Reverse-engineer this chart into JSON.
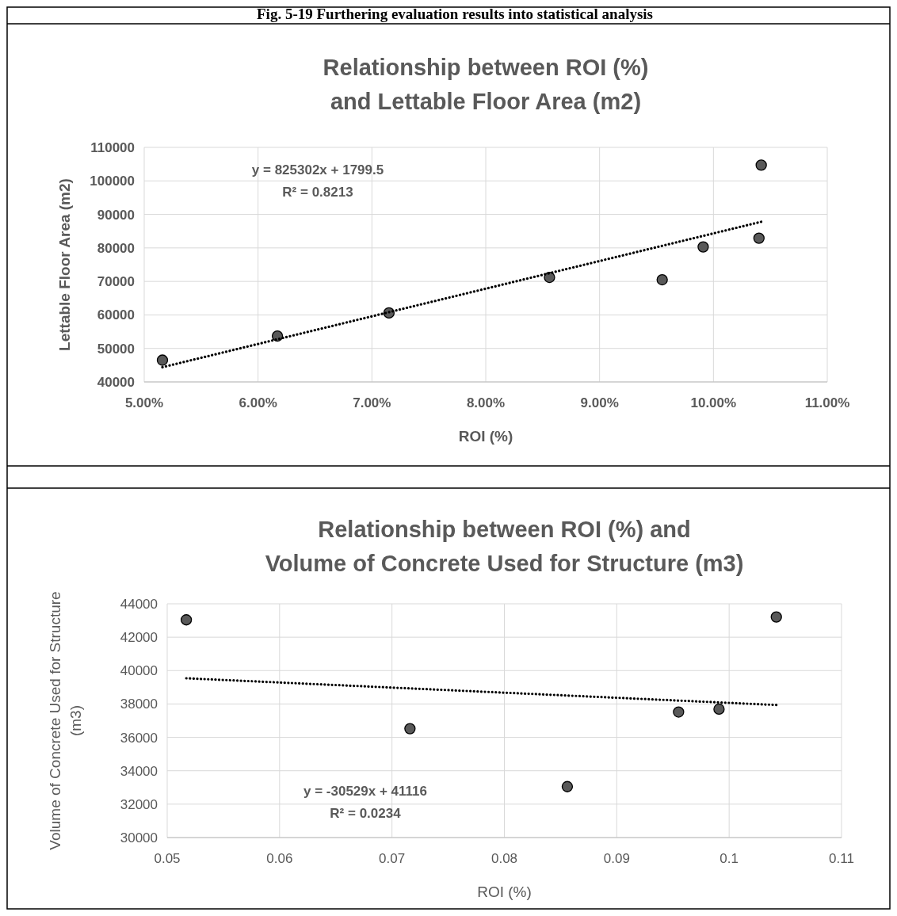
{
  "chart_data": [
    {
      "type": "scatter",
      "title": "Relationship between ROI (%)\nand Lettable Floor Area (m2)",
      "xlabel": "ROI (%)",
      "ylabel": "Lettable Floor Area (m2)",
      "annotations": [
        "Fig. 5-19 Furthering evaluation results into statistical analysis",
        "y = 825302x + 1799.5",
        "R² = 0.8213"
      ],
      "xlim": [
        0.05,
        0.11
      ],
      "xticks": [
        {
          "value": 0.05,
          "label": "5.00%"
        },
        {
          "value": 0.06,
          "label": "6.00%"
        },
        {
          "value": 0.07,
          "label": "7.00%"
        },
        {
          "value": 0.08,
          "label": "8.00%"
        },
        {
          "value": 0.09,
          "label": "9.00%"
        },
        {
          "value": 0.1,
          "label": "10.00%"
        },
        {
          "value": 0.11,
          "label": "11.00%"
        }
      ],
      "ylim": [
        40000,
        110000
      ],
      "yticks": [
        40000,
        50000,
        60000,
        70000,
        80000,
        90000,
        100000,
        110000
      ],
      "grid": true,
      "series": [
        {
          "color": "#595959",
          "marker": "circle",
          "x": [
            0.0516,
            0.0617,
            0.0715,
            0.0856,
            0.0955,
            0.0991,
            0.104,
            0.1042
          ],
          "values": [
            46500,
            53700,
            60600,
            71200,
            70500,
            80300,
            82900,
            104700
          ]
        },
        {
          "type": "line",
          "color": "#000000",
          "marker": "none",
          "line_style": "dotted",
          "x": [
            0.0516,
            0.1042
          ],
          "values": [
            44400,
            87800
          ]
        }
      ]
    },
    {
      "type": "scatter",
      "title": "Relationship between ROI (%) and\nVolume of Concrete Used for Structure (m3)",
      "xlabel": "ROI (%)",
      "ylabel": "Volume of Concrete Used for Structure\n(m3)",
      "annotations": [
        "y = -30529x + 41116",
        "R² = 0.0234"
      ],
      "xlim": [
        0.05,
        0.11
      ],
      "xticks": [
        0.05,
        0.06,
        0.07,
        0.08,
        0.09,
        0.1,
        0.11
      ],
      "ylim": [
        30000,
        44000
      ],
      "yticks": [
        30000,
        32000,
        34000,
        36000,
        38000,
        40000,
        42000,
        44000
      ],
      "grid": true,
      "series": [
        {
          "color": "#595959",
          "marker": "circle",
          "x": [
            0.0517,
            0.0716,
            0.0856,
            0.0955,
            0.0991,
            0.1042
          ],
          "values": [
            43040,
            36520,
            33050,
            37520,
            37690,
            43210
          ]
        },
        {
          "type": "line",
          "color": "#000000",
          "marker": "none",
          "line_style": "dotted",
          "x": [
            0.0517,
            0.1042
          ],
          "values": [
            39540,
            37940
          ]
        }
      ]
    }
  ]
}
